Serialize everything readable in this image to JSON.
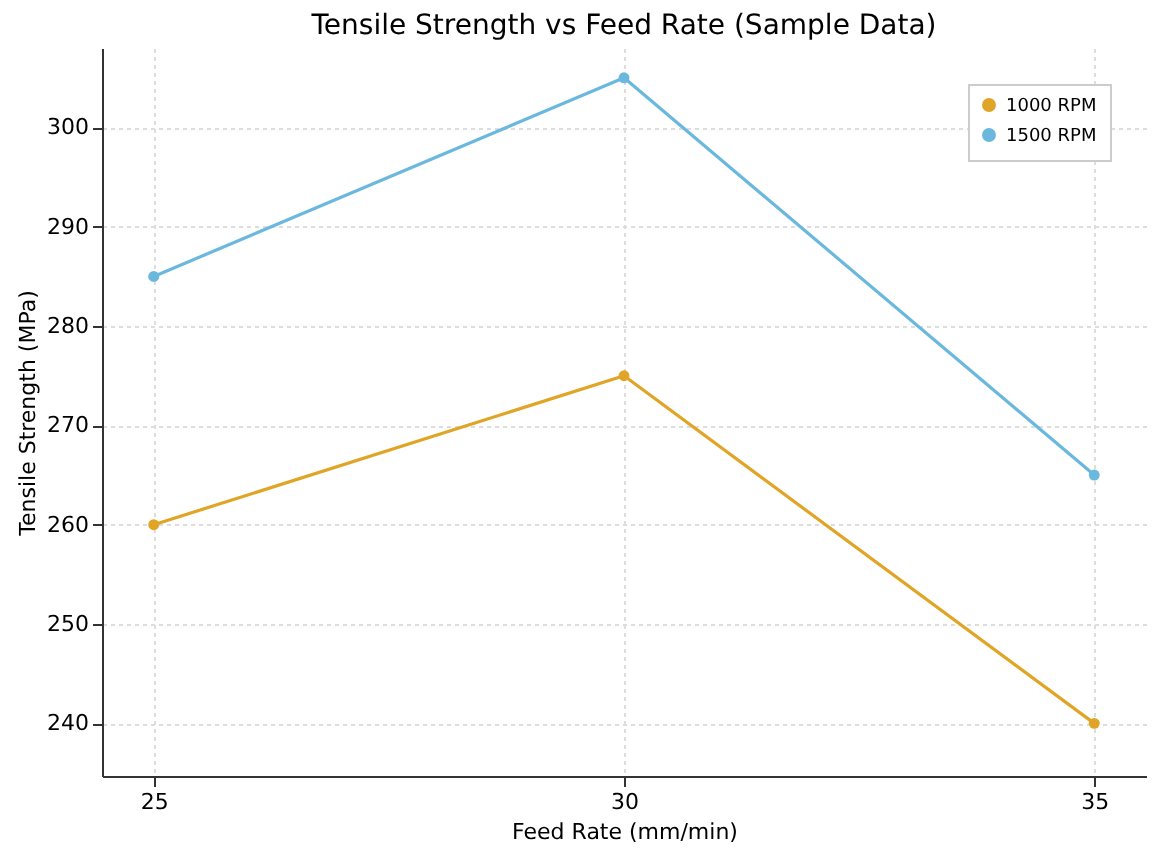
{
  "chart_data": {
    "type": "line",
    "title": "Tensile Strength vs Feed Rate (Sample Data)",
    "xlabel": "Feed Rate (mm/min)",
    "ylabel": "Tensile Strength (MPa)",
    "x": [
      25,
      30,
      35
    ],
    "series": [
      {
        "name": "1000 RPM",
        "color": "#e0a526",
        "values": [
          260,
          275,
          240
        ]
      },
      {
        "name": "1500 RPM",
        "color": "#6bb8de",
        "values": [
          285,
          305,
          265
        ]
      }
    ],
    "xlim": [
      24.45,
      35.55
    ],
    "xticks": [
      25,
      30,
      35
    ],
    "ylim": [
      234.7,
      308
    ],
    "yticks": [
      240,
      250,
      260,
      270,
      280,
      290,
      300
    ],
    "grid": true,
    "legend": "top right",
    "marker": "circle",
    "line_style": "solid"
  }
}
